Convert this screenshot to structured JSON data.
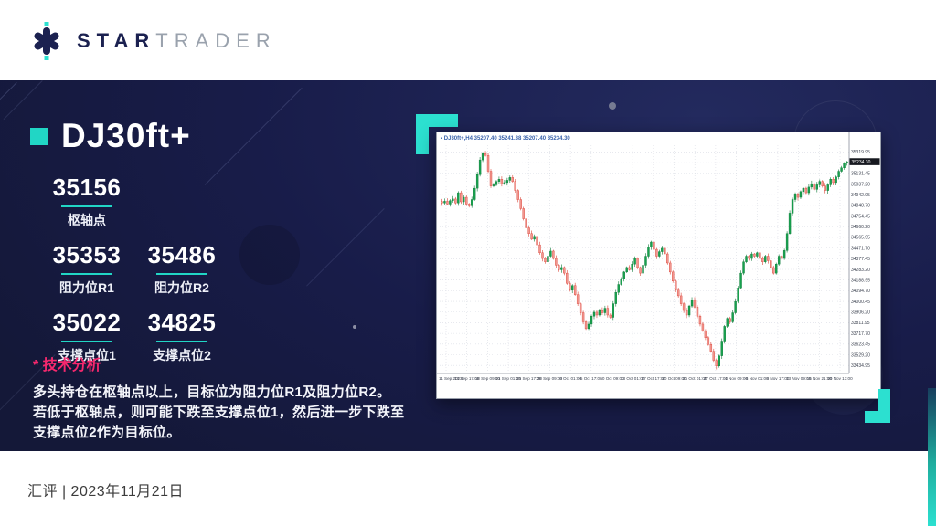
{
  "header": {
    "logo_star": "STAR",
    "logo_trader": "TRADER"
  },
  "accent_color": "#2ce0d0",
  "main": {
    "title": "DJ30ft+",
    "levels": [
      {
        "value": "35156",
        "label": "枢轴点"
      },
      {
        "value": "35353",
        "label": "阻力位R1"
      },
      {
        "value": "35486",
        "label": "阻力位R2"
      },
      {
        "value": "35022",
        "label": "支撑点位1"
      },
      {
        "value": "34825",
        "label": "支撑点位2"
      }
    ],
    "analysis_heading": "* 技术分析",
    "analysis_lines": [
      "多头持仓在枢轴点以上，目标位为阻力位R1及阻力位R2。",
      "若低于枢轴点，则可能下跌至支撑点位1，然后进一步下跌至",
      "支撑点位2作为目标位。"
    ]
  },
  "footer": {
    "text": "汇评 | 2023年11月21日"
  },
  "chart_data": {
    "type": "candlestick",
    "title": "DJ30ft+,H4  35207.40 35241.38 35207.40 35234.30",
    "current_price": "35234.30",
    "price_min": 33380,
    "price_max": 35380,
    "price_labels": [
      "35319.95",
      "35225.70",
      "35131.45",
      "35037.20",
      "34942.95",
      "34848.70",
      "34754.45",
      "34660.20",
      "34565.95",
      "34471.70",
      "34377.45",
      "34283.20",
      "34188.95",
      "34094.70",
      "34000.45",
      "33906.20",
      "33811.95",
      "33717.70",
      "33623.45",
      "33529.20",
      "33434.95"
    ],
    "time_labels": [
      "11 Sep 2023",
      "13 Sep 17:00",
      "18 Sep 09:00",
      "21 Sep 01:00",
      "25 Sep 17:00",
      "28 Sep 09:00",
      "3 Oct 01:00",
      "5 Oct 17:00",
      "10 Oct 09:00",
      "13 Oct 01:00",
      "17 Oct 17:00",
      "20 Oct 09:00",
      "25 Oct 01:00",
      "27 Oct 17:00",
      "1 Nov 09:00",
      "6 Nov 01:00",
      "8 Nov 17:00",
      "13 Nov 09:00",
      "15 Nov 21:00",
      "20 Nov 13:00"
    ],
    "closes": [
      34870,
      34885,
      34860,
      34890,
      34905,
      34870,
      34960,
      34880,
      34920,
      34860,
      34845,
      34900,
      35000,
      35120,
      35250,
      35305,
      35290,
      35150,
      35020,
      35030,
      35060,
      35080,
      35040,
      35050,
      35070,
      35095,
      35060,
      34980,
      34900,
      34820,
      34730,
      34650,
      34600,
      34550,
      34575,
      34500,
      34430,
      34380,
      34350,
      34400,
      34445,
      34380,
      34320,
      34280,
      34300,
      34250,
      34160,
      34100,
      34140,
      34060,
      33980,
      33900,
      33820,
      33760,
      33800,
      33870,
      33905,
      33880,
      33920,
      33900,
      33940,
      33880,
      33860,
      33980,
      34080,
      34150,
      34200,
      34260,
      34300,
      34280,
      34330,
      34380,
      34300,
      34250,
      34320,
      34400,
      34480,
      34525,
      34460,
      34400,
      34440,
      34470,
      34420,
      34340,
      34260,
      34180,
      34100,
      34050,
      33980,
      33920,
      33880,
      33960,
      34010,
      33950,
      33870,
      33800,
      33740,
      33680,
      33620,
      33560,
      33480,
      33430,
      33520,
      33650,
      33780,
      33850,
      33820,
      33900,
      34000,
      34120,
      34250,
      34350,
      34400,
      34380,
      34420,
      34400,
      34430,
      34380,
      34350,
      34400,
      34360,
      34300,
      34250,
      34330,
      34400,
      34380,
      34450,
      34600,
      34780,
      34900,
      34950,
      34920,
      34970,
      35000,
      34960,
      35010,
      35040,
      34990,
      35030,
      35060,
      35020,
      34980,
      35030,
      35080,
      35050,
      35100,
      35150,
      35180,
      35220,
      35234
    ],
    "colors": {
      "up": "#18a14e",
      "up_stroke": "#0d7a38",
      "down": "#f19790",
      "down_stroke": "#db4337",
      "grid": "#d9dce4",
      "axis_text": "#3c4250",
      "title_text": "#3a62aa",
      "tag_bg": "#16181f"
    }
  }
}
